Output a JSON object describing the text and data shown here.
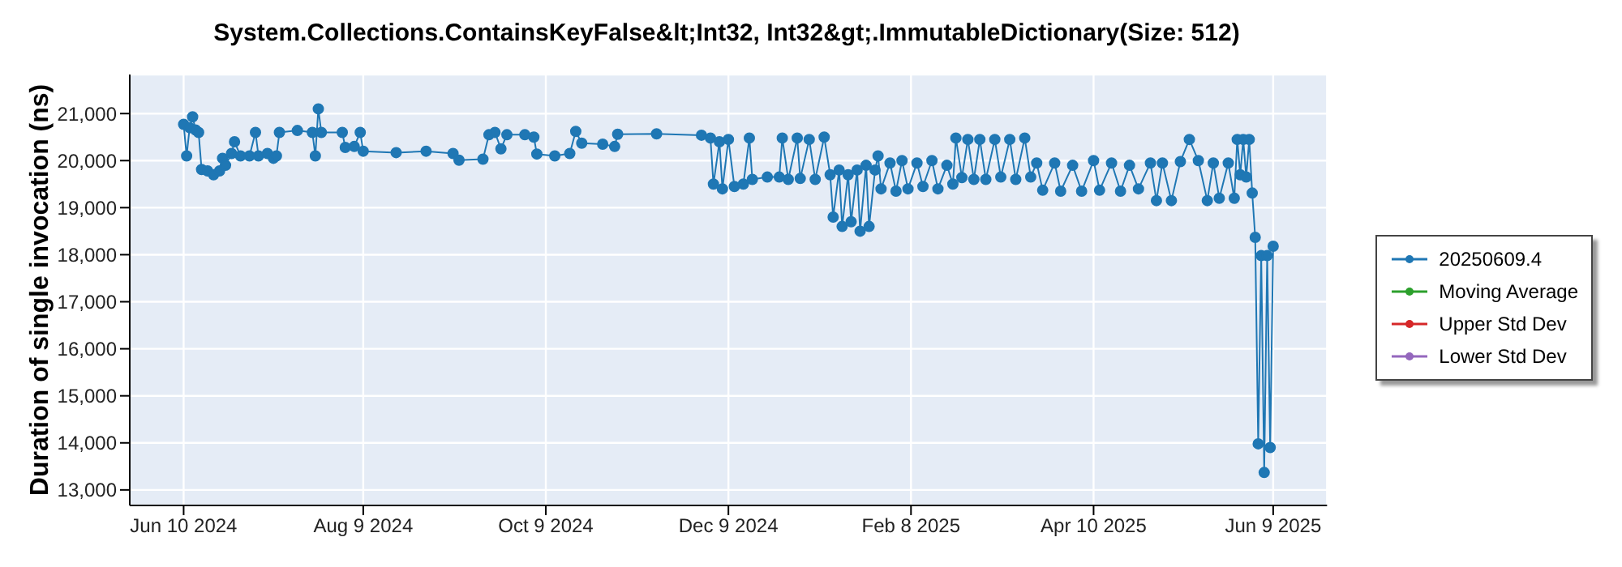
{
  "chart_data": {
    "type": "line",
    "title": "System.Collections.ContainsKeyFalse&lt;Int32, Int32&gt;.ImmutableDictionary(Size: 512)",
    "ylabel": "Duration of single invocation (ns)",
    "xlim": [
      "2024-05-23",
      "2025-06-27"
    ],
    "xticks": [
      {
        "value": "2024-06-10",
        "label": "Jun 10 2024"
      },
      {
        "value": "2024-08-09",
        "label": "Aug 9 2024"
      },
      {
        "value": "2024-10-09",
        "label": "Oct 9 2024"
      },
      {
        "value": "2024-12-09",
        "label": "Dec 9 2024"
      },
      {
        "value": "2025-02-08",
        "label": "Feb 8 2025"
      },
      {
        "value": "2025-04-10",
        "label": "Apr 10 2025"
      },
      {
        "value": "2025-06-09",
        "label": "Jun 9 2025"
      }
    ],
    "ylim": [
      12670,
      21830
    ],
    "yticks": [
      {
        "value": 13000,
        "label": "13,000"
      },
      {
        "value": 14000,
        "label": "14,000"
      },
      {
        "value": 15000,
        "label": "15,000"
      },
      {
        "value": 16000,
        "label": "16,000"
      },
      {
        "value": 17000,
        "label": "17,000"
      },
      {
        "value": 18000,
        "label": "18,000"
      },
      {
        "value": 19000,
        "label": "19,000"
      },
      {
        "value": 20000,
        "label": "20,000"
      },
      {
        "value": 21000,
        "label": "21,000"
      }
    ],
    "grid": true,
    "legend": "right",
    "marker": "circle",
    "line_style": "solid",
    "series": [
      {
        "name": "20250609.4",
        "color": "#1f77b4",
        "x": [
          "2024-06-10",
          "2024-06-11",
          "2024-06-12",
          "2024-06-13",
          "2024-06-14",
          "2024-06-15",
          "2024-06-16",
          "2024-06-18",
          "2024-06-20",
          "2024-06-22",
          "2024-06-23",
          "2024-06-24",
          "2024-06-26",
          "2024-06-27",
          "2024-06-29",
          "2024-07-02",
          "2024-07-04",
          "2024-07-05",
          "2024-07-08",
          "2024-07-10",
          "2024-07-11",
          "2024-07-12",
          "2024-07-18",
          "2024-07-23",
          "2024-07-24",
          "2024-07-25",
          "2024-07-26",
          "2024-08-02",
          "2024-08-03",
          "2024-08-06",
          "2024-08-08",
          "2024-08-09",
          "2024-08-20",
          "2024-08-30",
          "2024-09-08",
          "2024-09-10",
          "2024-09-18",
          "2024-09-20",
          "2024-09-22",
          "2024-09-24",
          "2024-09-26",
          "2024-10-02",
          "2024-10-05",
          "2024-10-06",
          "2024-10-12",
          "2024-10-17",
          "2024-10-19",
          "2024-10-21",
          "2024-10-28",
          "2024-11-01",
          "2024-11-02",
          "2024-11-15",
          "2024-11-30",
          "2024-12-03",
          "2024-12-04",
          "2024-12-06",
          "2024-12-07",
          "2024-12-09",
          "2024-12-11",
          "2024-12-14",
          "2024-12-16",
          "2024-12-17",
          "2024-12-22",
          "2024-12-26",
          "2024-12-27",
          "2024-12-29",
          "2025-01-01",
          "2025-01-02",
          "2025-01-05",
          "2025-01-07",
          "2025-01-10",
          "2025-01-12",
          "2025-01-13",
          "2025-01-15",
          "2025-01-16",
          "2025-01-18",
          "2025-01-19",
          "2025-01-21",
          "2025-01-22",
          "2025-01-24",
          "2025-01-25",
          "2025-01-27",
          "2025-01-28",
          "2025-01-29",
          "2025-02-01",
          "2025-02-03",
          "2025-02-05",
          "2025-02-07",
          "2025-02-10",
          "2025-02-12",
          "2025-02-15",
          "2025-02-17",
          "2025-02-20",
          "2025-02-22",
          "2025-02-23",
          "2025-02-25",
          "2025-02-27",
          "2025-03-01",
          "2025-03-03",
          "2025-03-05",
          "2025-03-08",
          "2025-03-10",
          "2025-03-13",
          "2025-03-15",
          "2025-03-18",
          "2025-03-20",
          "2025-03-22",
          "2025-03-24",
          "2025-03-28",
          "2025-03-30",
          "2025-04-03",
          "2025-04-06",
          "2025-04-10",
          "2025-04-12",
          "2025-04-16",
          "2025-04-19",
          "2025-04-22",
          "2025-04-25",
          "2025-04-29",
          "2025-05-01",
          "2025-05-03",
          "2025-05-06",
          "2025-05-09",
          "2025-05-12",
          "2025-05-15",
          "2025-05-18",
          "2025-05-20",
          "2025-05-22",
          "2025-05-25",
          "2025-05-27",
          "2025-05-28",
          "2025-05-29",
          "2025-05-30",
          "2025-05-31",
          "2025-06-01",
          "2025-06-02",
          "2025-06-03",
          "2025-06-04",
          "2025-06-05",
          "2025-06-06",
          "2025-06-07",
          "2025-06-08",
          "2025-06-09"
        ],
        "values": [
          20770,
          20100,
          20700,
          20930,
          20650,
          20600,
          19810,
          19780,
          19700,
          19780,
          20050,
          19900,
          20150,
          20400,
          20100,
          20100,
          20600,
          20100,
          20150,
          20050,
          20100,
          20600,
          20640,
          20600,
          20100,
          21100,
          20600,
          20600,
          20280,
          20300,
          20600,
          20200,
          20170,
          20200,
          20150,
          20010,
          20030,
          20550,
          20600,
          20250,
          20550,
          20550,
          20500,
          20140,
          20100,
          20150,
          20620,
          20370,
          20350,
          20300,
          20560,
          20570,
          20540,
          20480,
          19500,
          20400,
          19400,
          20450,
          19450,
          19500,
          20480,
          19600,
          19650,
          19650,
          20480,
          19600,
          20480,
          19620,
          20450,
          19600,
          20500,
          19700,
          18800,
          19800,
          18600,
          19700,
          18700,
          19800,
          18500,
          19900,
          18600,
          19800,
          20100,
          19400,
          19950,
          19350,
          20000,
          19400,
          19950,
          19450,
          20000,
          19400,
          19900,
          19500,
          20480,
          19640,
          20450,
          19600,
          20450,
          19600,
          20450,
          19650,
          20450,
          19600,
          20480,
          19650,
          19950,
          19370,
          19950,
          19350,
          19900,
          19350,
          20000,
          19370,
          19950,
          19350,
          19900,
          19400,
          19950,
          19150,
          19950,
          19150,
          19980,
          20450,
          20000,
          19150,
          19950,
          19200,
          19950,
          19200,
          20450,
          19700,
          20450,
          19650,
          20450,
          19310,
          18370,
          13980,
          17980,
          13370,
          17980,
          13900,
          18180
        ]
      },
      {
        "name": "Moving Average",
        "color": "#2ca02c"
      },
      {
        "name": "Upper Std Dev",
        "color": "#d62728"
      },
      {
        "name": "Lower Std Dev",
        "color": "#9467bd"
      }
    ]
  }
}
